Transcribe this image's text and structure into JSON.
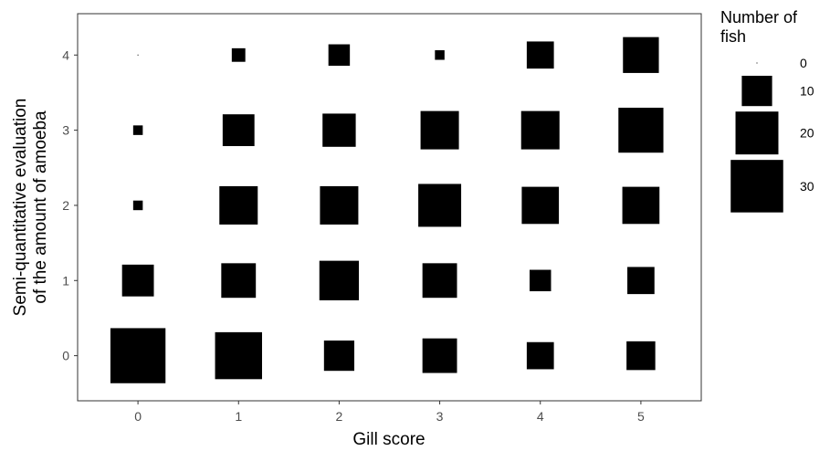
{
  "chart_data": {
    "type": "scatter",
    "xlabel": "Gill score",
    "ylabel_lines": [
      "Semi-quantitative evaluation",
      "of the amount of amoeba"
    ],
    "x_ticks": [
      "0",
      "1",
      "2",
      "3",
      "4",
      "5"
    ],
    "y_ticks": [
      "0",
      "1",
      "2",
      "3",
      "4"
    ],
    "xlim": [
      -0.6,
      5.6
    ],
    "ylim": [
      -0.6,
      4.55
    ],
    "grid": false,
    "legend": {
      "title_lines": [
        "Number of",
        "fish"
      ],
      "position": "right",
      "entries": [
        {
          "label": "0",
          "value": 0
        },
        {
          "label": "10",
          "value": 10
        },
        {
          "label": "20",
          "value": 20
        },
        {
          "label": "30",
          "value": 30
        }
      ]
    },
    "marker_color": "#000000",
    "points": [
      {
        "x": 0,
        "y": 0,
        "n": 33
      },
      {
        "x": 0,
        "y": 1,
        "n": 11
      },
      {
        "x": 0,
        "y": 2,
        "n": 1
      },
      {
        "x": 0,
        "y": 3,
        "n": 1
      },
      {
        "x": 0,
        "y": 4,
        "n": 0
      },
      {
        "x": 1,
        "y": 0,
        "n": 24
      },
      {
        "x": 1,
        "y": 1,
        "n": 13
      },
      {
        "x": 1,
        "y": 2,
        "n": 16
      },
      {
        "x": 1,
        "y": 3,
        "n": 11
      },
      {
        "x": 1,
        "y": 4,
        "n": 2
      },
      {
        "x": 2,
        "y": 0,
        "n": 10
      },
      {
        "x": 2,
        "y": 1,
        "n": 17
      },
      {
        "x": 2,
        "y": 2,
        "n": 16
      },
      {
        "x": 2,
        "y": 3,
        "n": 12
      },
      {
        "x": 2,
        "y": 4,
        "n": 5
      },
      {
        "x": 3,
        "y": 0,
        "n": 13
      },
      {
        "x": 3,
        "y": 1,
        "n": 13
      },
      {
        "x": 3,
        "y": 2,
        "n": 20
      },
      {
        "x": 3,
        "y": 3,
        "n": 16
      },
      {
        "x": 3,
        "y": 4,
        "n": 1
      },
      {
        "x": 4,
        "y": 0,
        "n": 8
      },
      {
        "x": 4,
        "y": 1,
        "n": 5
      },
      {
        "x": 4,
        "y": 2,
        "n": 15
      },
      {
        "x": 4,
        "y": 3,
        "n": 16
      },
      {
        "x": 4,
        "y": 4,
        "n": 8
      },
      {
        "x": 5,
        "y": 0,
        "n": 9
      },
      {
        "x": 5,
        "y": 1,
        "n": 8
      },
      {
        "x": 5,
        "y": 2,
        "n": 15
      },
      {
        "x": 5,
        "y": 3,
        "n": 22
      },
      {
        "x": 5,
        "y": 4,
        "n": 14
      }
    ]
  }
}
